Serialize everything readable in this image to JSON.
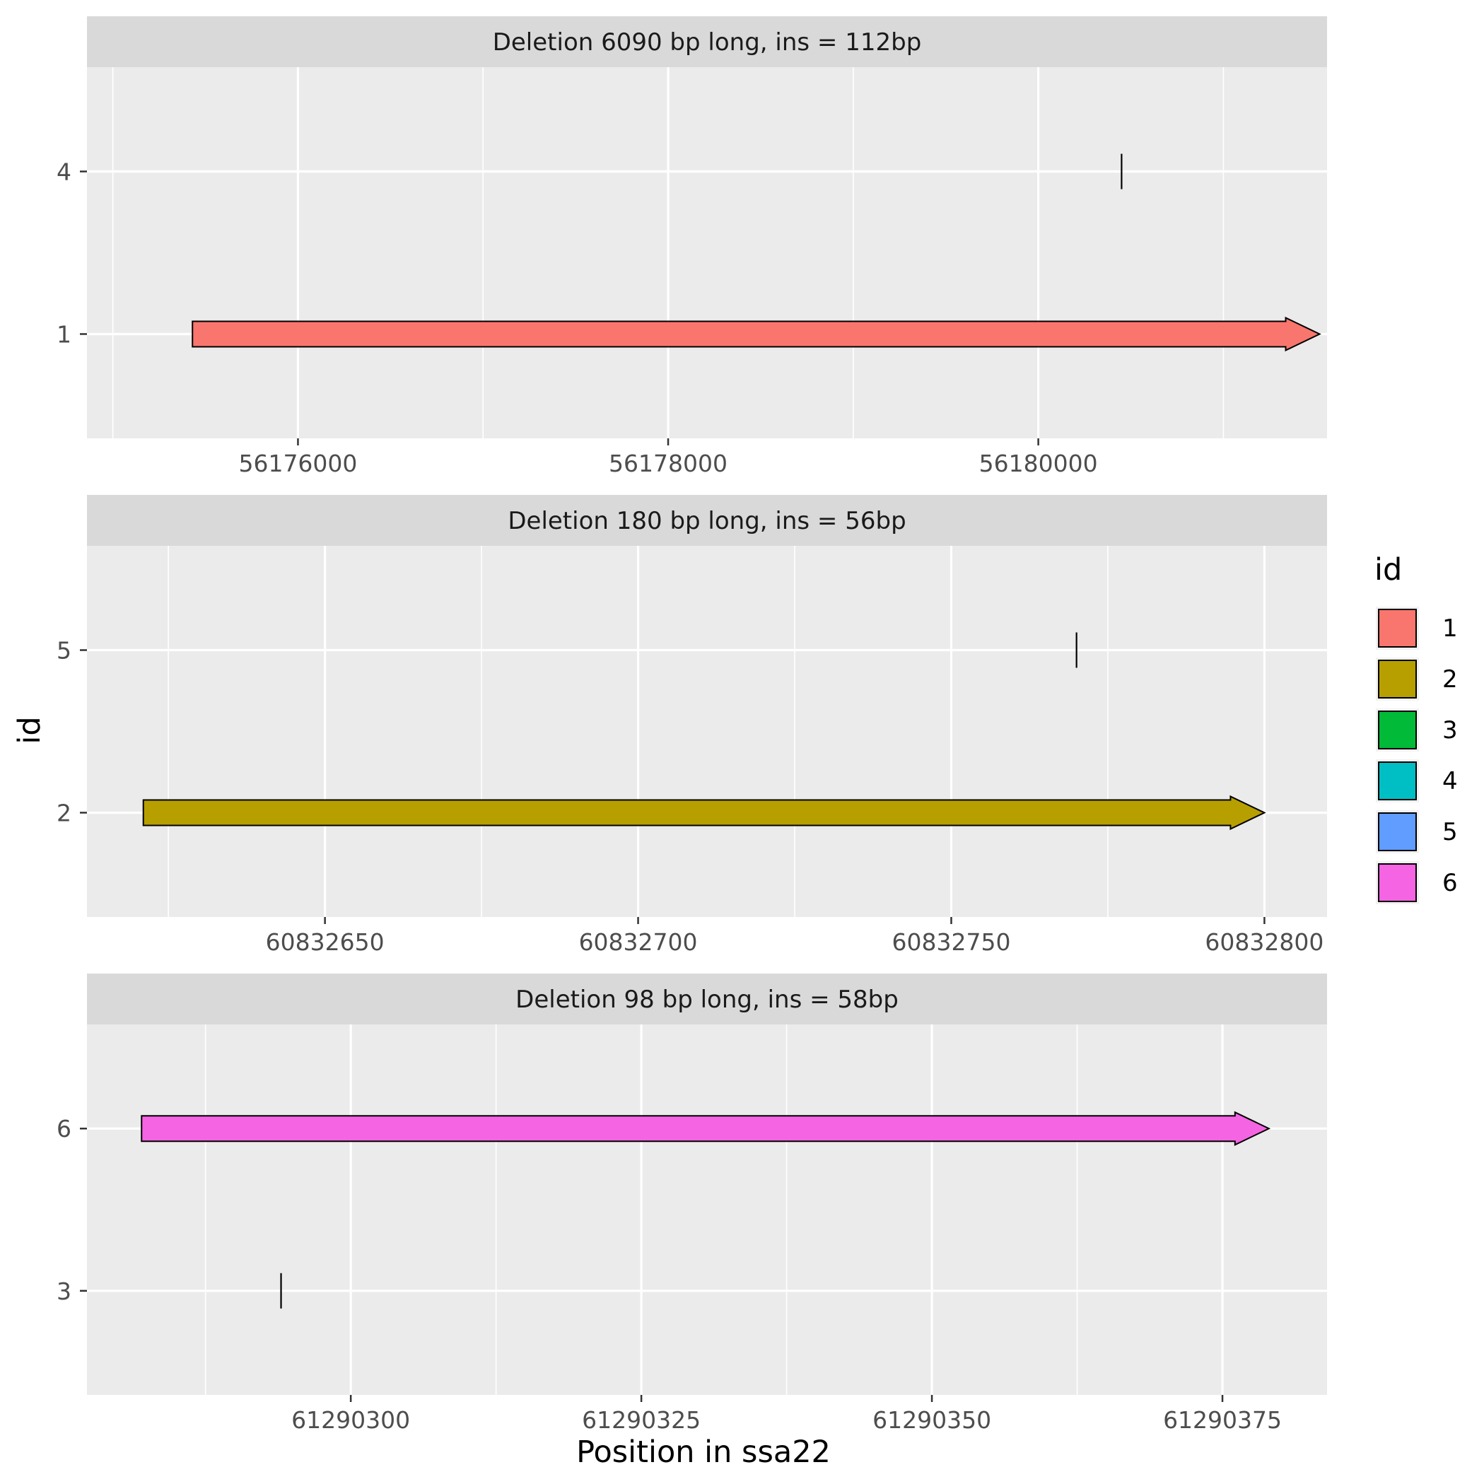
{
  "chart_data": {
    "type": "faceted-arrow-segments",
    "xlabel": "Position in ssa22",
    "ylabel": "id",
    "legend": {
      "title": "id",
      "placement": "right",
      "entries": [
        {
          "label": "1",
          "color": "#F8766D"
        },
        {
          "label": "2",
          "color": "#B79F00"
        },
        {
          "label": "3",
          "color": "#00BA38"
        },
        {
          "label": "4",
          "color": "#00BFC4"
        },
        {
          "label": "5",
          "color": "#619CFF"
        },
        {
          "label": "6",
          "color": "#F564E3"
        }
      ]
    },
    "grid": true,
    "panels": [
      {
        "title": "Deletion 6090 bp long, ins = 112bp",
        "xlim": [
          56174860,
          56181560
        ],
        "xticks": [
          56176000,
          56178000,
          56180000
        ],
        "xtick_labels": [
          "56176000",
          "56178000",
          "56180000"
        ],
        "yticks": [
          "4",
          "1"
        ],
        "arrows": [
          {
            "id": "1",
            "start": 56175430,
            "end": 56181520,
            "color": "#F8766D"
          }
        ],
        "marks": [
          {
            "id": "4",
            "x": 56180450
          }
        ]
      },
      {
        "title": "Deletion 180 bp long, ins = 56bp",
        "xlim": [
          60832612,
          60832810
        ],
        "xticks": [
          60832650,
          60832700,
          60832750,
          60832800
        ],
        "xtick_labels": [
          "60832650",
          "60832700",
          "60832750",
          "60832800"
        ],
        "yticks": [
          "5",
          "2"
        ],
        "arrows": [
          {
            "id": "2",
            "start": 60832621,
            "end": 60832800,
            "color": "#B79F00"
          }
        ],
        "marks": [
          {
            "id": "5",
            "x": 60832770
          }
        ]
      },
      {
        "title": "Deletion 98 bp long, ins = 58bp",
        "xlim": [
          61290277.3,
          61290384
        ],
        "xticks": [
          61290300,
          61290325,
          61290350,
          61290375
        ],
        "xtick_labels": [
          "61290300",
          "61290325",
          "61290350",
          "61290375"
        ],
        "yticks": [
          "6",
          "3"
        ],
        "arrows": [
          {
            "id": "6",
            "start": 61290282,
            "end": 61290379,
            "color": "#F564E3"
          }
        ],
        "marks": [
          {
            "id": "3",
            "x": 61290294
          }
        ]
      }
    ]
  }
}
